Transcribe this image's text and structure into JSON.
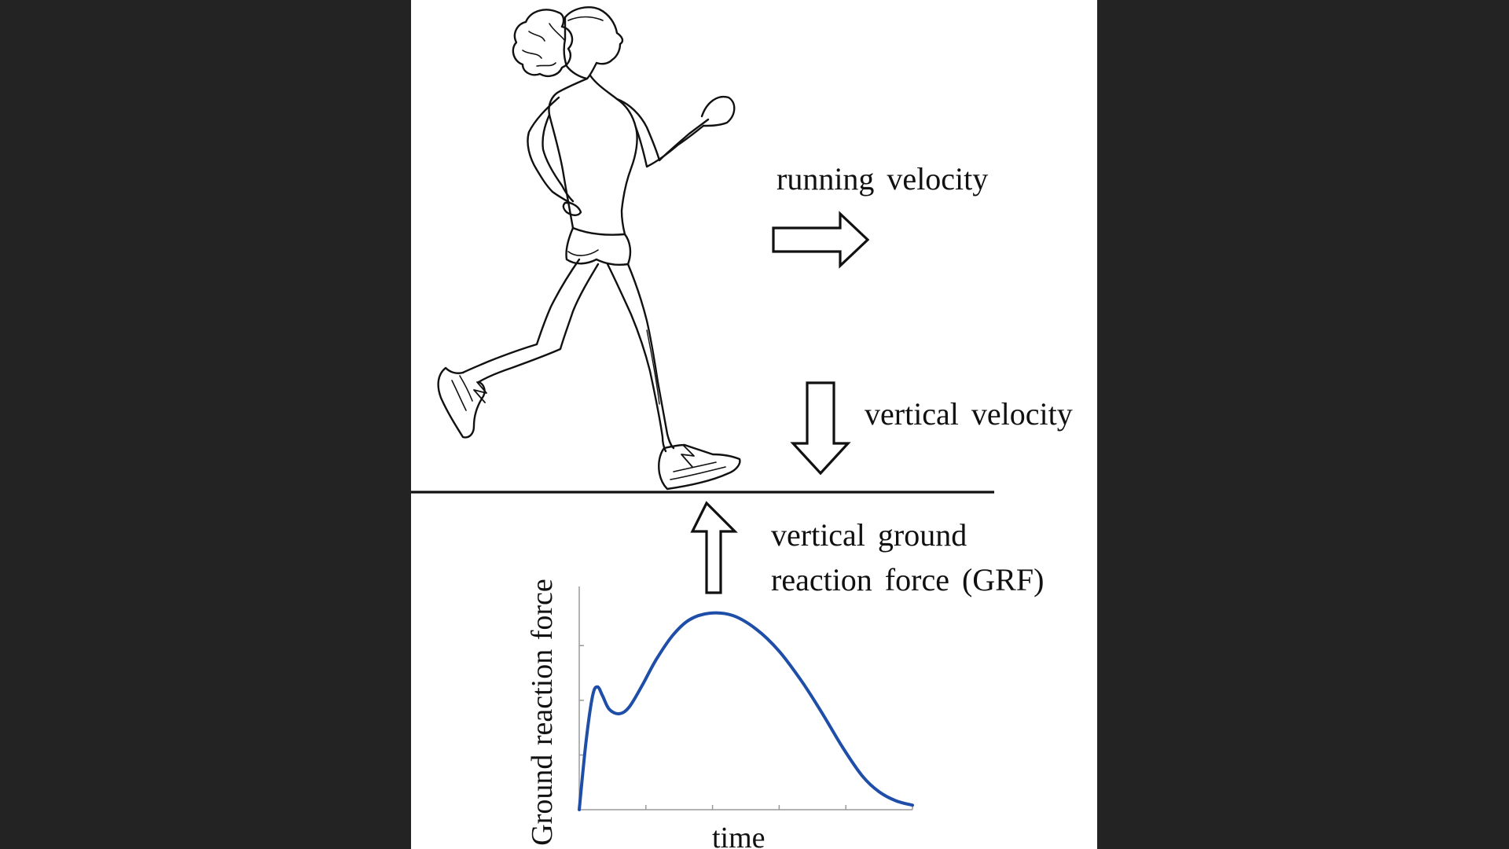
{
  "labels": {
    "running_velocity": "running velocity",
    "vertical_velocity": "vertical velocity",
    "grf_line1": "vertical ground",
    "grf_line2": "reaction force (GRF)"
  },
  "colors": {
    "background": "#232323",
    "panel": "#ffffff",
    "ink": "#111111",
    "curve": "#1f4ea8"
  },
  "icons": {
    "runner": "runner-illustration",
    "forward_arrow": "arrow-right-outline",
    "down_arrow": "arrow-down-outline",
    "up_arrow": "arrow-up-outline"
  },
  "chart_data": {
    "type": "line",
    "title": "",
    "xlabel": "time",
    "ylabel": "Ground reaction force",
    "x_ticks_count": 5,
    "y_ticks_count": 3,
    "tick_labels": false,
    "grid": false,
    "xlim": [
      0,
      1
    ],
    "ylim": [
      0,
      1
    ],
    "series": [
      {
        "color": "#1f4ea8",
        "x": [
          0.0,
          0.02,
          0.04,
          0.055,
          0.07,
          0.09,
          0.12,
          0.15,
          0.19,
          0.23,
          0.28,
          0.33,
          0.39,
          0.46,
          0.53,
          0.6,
          0.67,
          0.73,
          0.79,
          0.85,
          0.9,
          0.95,
          1.0
        ],
        "values": [
          0.0,
          0.3,
          0.51,
          0.55,
          0.51,
          0.45,
          0.43,
          0.46,
          0.56,
          0.67,
          0.78,
          0.85,
          0.88,
          0.87,
          0.81,
          0.71,
          0.57,
          0.43,
          0.28,
          0.15,
          0.08,
          0.04,
          0.02
        ]
      }
    ]
  }
}
